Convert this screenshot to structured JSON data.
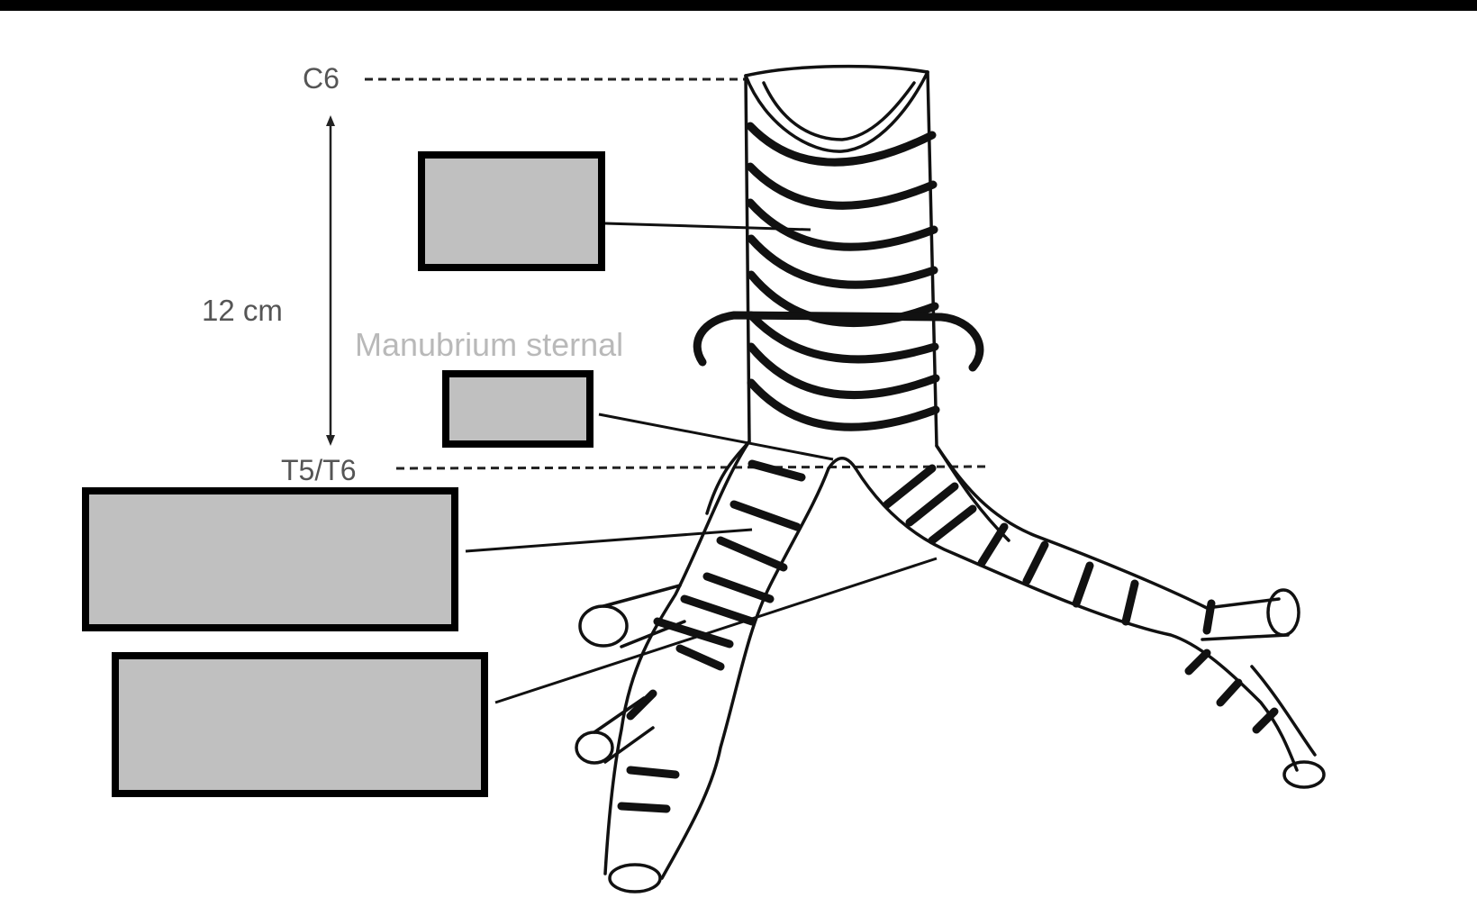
{
  "labels": {
    "c6": "C6",
    "t5t6": "T5/T6",
    "length": "12 cm",
    "manubrium": "Manubrium sternal"
  },
  "answer_boxes": [
    {
      "name": "trachea-label-box",
      "value": ""
    },
    {
      "name": "carina-label-box",
      "value": ""
    },
    {
      "name": "right-main-bronchus-label-box",
      "value": ""
    },
    {
      "name": "left-main-bronchus-label-box",
      "value": ""
    }
  ],
  "colors": {
    "box_fill": "#c0c0c0",
    "box_border": "#000000",
    "line": "#111111",
    "top_bar": "#000000"
  }
}
